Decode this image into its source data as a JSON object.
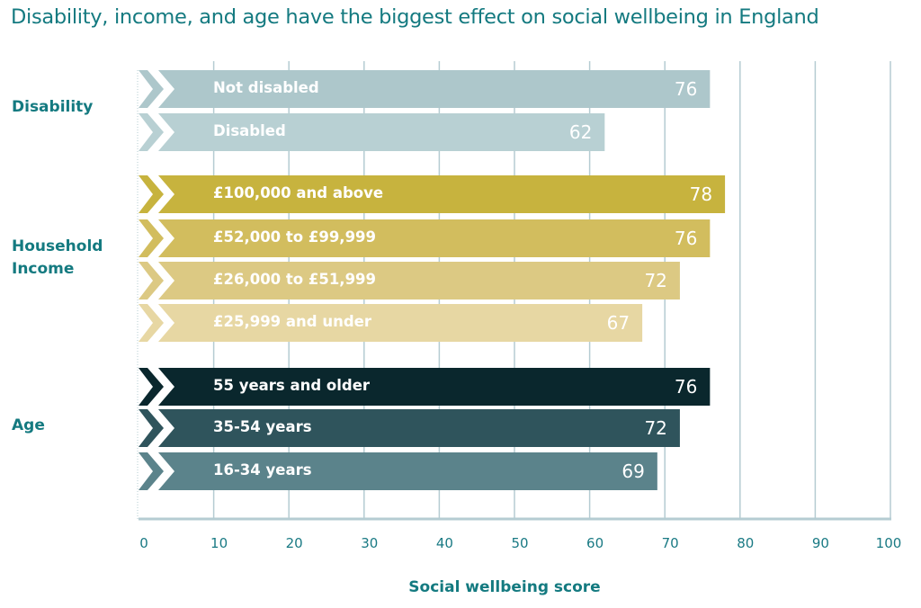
{
  "chart_data": {
    "type": "bar",
    "orientation": "horizontal",
    "title": "Disability, income, and age have the biggest effect on social wellbeing in England",
    "xlabel": "Social wellbeing score",
    "ylabel": "",
    "xlim": [
      0,
      100
    ],
    "x_ticks": [
      0,
      10,
      20,
      30,
      40,
      50,
      60,
      70,
      80,
      90,
      100
    ],
    "grid": true,
    "legend": "none",
    "groups": [
      {
        "name": "Disability",
        "bars": [
          {
            "label": "Not disabled",
            "value": 76,
            "color": "#adc7cb"
          },
          {
            "label": "Disabled",
            "value": 62,
            "color": "#b8d0d3"
          }
        ]
      },
      {
        "name": "Household Income",
        "bars": [
          {
            "label": "£100,000 and above",
            "value": 78,
            "color": "#c7b33e"
          },
          {
            "label": "£52,000 to £99,999",
            "value": 76,
            "color": "#d2bd5e"
          },
          {
            "label": "£26,000 to £51,999",
            "value": 72,
            "color": "#dcc983"
          },
          {
            "label": "£25,999 and under",
            "value": 67,
            "color": "#e7d7a3"
          }
        ]
      },
      {
        "name": "Age",
        "bars": [
          {
            "label": "55 years and older",
            "value": 76,
            "color": "#0a272d"
          },
          {
            "label": "35-54 years",
            "value": 72,
            "color": "#2f545c"
          },
          {
            "label": "16-34 years",
            "value": 69,
            "color": "#5b838b"
          }
        ]
      }
    ]
  },
  "colors": {
    "title": "#147a80",
    "grid": "#b5ccd2",
    "axis": "#b5ccd2"
  }
}
